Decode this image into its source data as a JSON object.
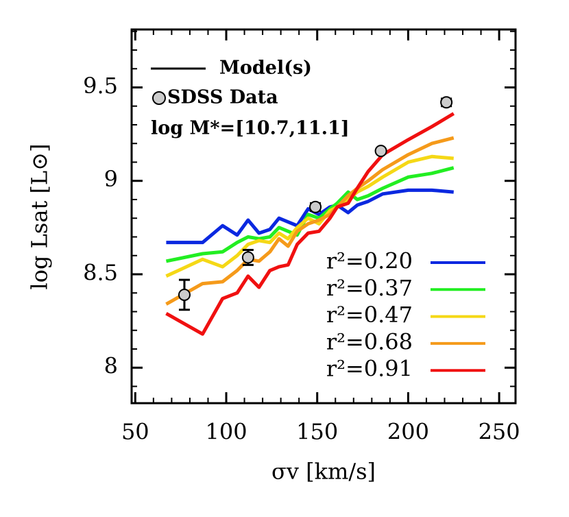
{
  "chart_data": {
    "type": "line",
    "xlabel": "σv [km/s]",
    "ylabel": "log Lsat [L⊙]",
    "xlim": [
      48,
      259
    ],
    "ylim": [
      7.81,
      9.81
    ],
    "xticks": [
      50,
      100,
      150,
      200,
      250
    ],
    "yticks": [
      8,
      8.5,
      9,
      9.5
    ],
    "xticks_minor": [
      60,
      70,
      80,
      90,
      110,
      120,
      130,
      140,
      160,
      170,
      180,
      190,
      210,
      220,
      230,
      240
    ],
    "yticks_minor": [
      7.9,
      8.1,
      8.2,
      8.3,
      8.4,
      8.6,
      8.7,
      8.8,
      8.9,
      9.1,
      9.2,
      9.3,
      9.4,
      9.6,
      9.7,
      9.8
    ],
    "model_label": "Model(s)",
    "data_label": "SDSS Data",
    "annotation": "log M*=[10.7,11.1]",
    "x": [
      67,
      87,
      98,
      106,
      112,
      118,
      124,
      129,
      134,
      139,
      145,
      151,
      157,
      161,
      167,
      172,
      178,
      186,
      200,
      213,
      225
    ],
    "series": [
      {
        "name": "r²=0.20",
        "color": "#0a28e0",
        "values": [
          8.67,
          8.67,
          8.76,
          8.71,
          8.79,
          8.72,
          8.74,
          8.8,
          8.78,
          8.76,
          8.85,
          8.82,
          8.86,
          8.87,
          8.83,
          8.87,
          8.89,
          8.93,
          8.95,
          8.95,
          8.94
        ]
      },
      {
        "name": "r²=0.37",
        "color": "#22ee22",
        "values": [
          8.57,
          8.61,
          8.62,
          8.67,
          8.7,
          8.69,
          8.7,
          8.75,
          8.73,
          8.71,
          8.82,
          8.8,
          8.85,
          8.88,
          8.94,
          8.9,
          8.92,
          8.96,
          9.02,
          9.04,
          9.07
        ]
      },
      {
        "name": "r²=0.47",
        "color": "#f5d816",
        "values": [
          8.49,
          8.58,
          8.54,
          8.6,
          8.66,
          8.68,
          8.67,
          8.72,
          8.69,
          8.75,
          8.8,
          8.77,
          8.84,
          8.86,
          8.9,
          8.94,
          8.97,
          9.02,
          9.1,
          9.13,
          9.12
        ]
      },
      {
        "name": "r²=0.68",
        "color": "#f59a1a",
        "values": [
          8.34,
          8.45,
          8.46,
          8.52,
          8.58,
          8.57,
          8.62,
          8.69,
          8.65,
          8.73,
          8.77,
          8.79,
          8.82,
          8.86,
          8.92,
          8.96,
          9.0,
          9.06,
          9.14,
          9.2,
          9.23
        ]
      },
      {
        "name": "r²=0.91",
        "color": "#f01010",
        "values": [
          8.29,
          8.18,
          8.37,
          8.4,
          8.49,
          8.43,
          8.52,
          8.54,
          8.55,
          8.66,
          8.72,
          8.73,
          8.8,
          8.86,
          8.88,
          8.96,
          9.05,
          9.14,
          9.22,
          9.29,
          9.36
        ]
      }
    ],
    "points": {
      "color": "#cccccc",
      "x": [
        77,
        112,
        149,
        185,
        221
      ],
      "values": [
        8.39,
        8.59,
        8.86,
        9.16,
        9.42
      ],
      "errors": [
        0.08,
        0.04,
        0.02,
        0.01,
        0.02
      ]
    }
  }
}
